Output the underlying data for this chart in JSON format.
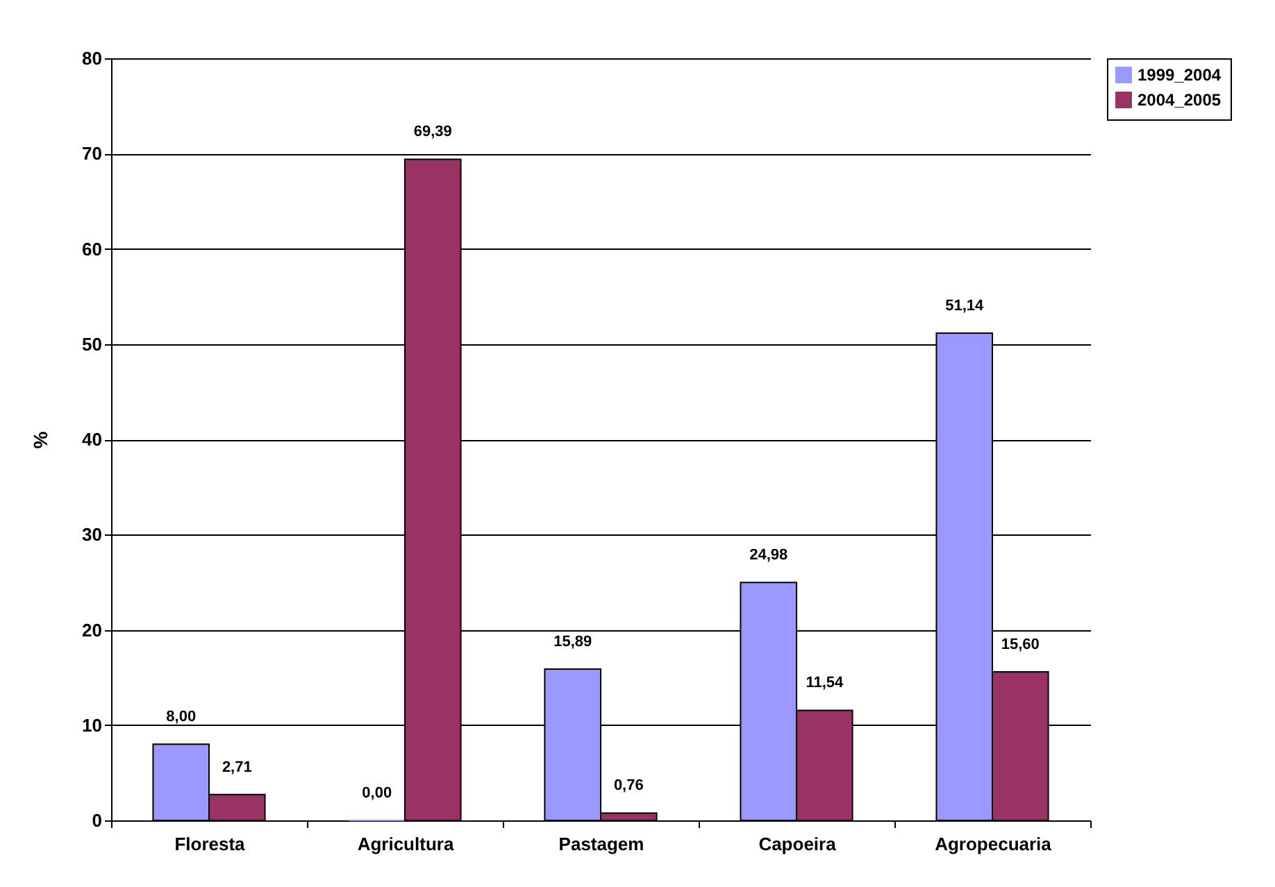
{
  "chart_data": {
    "type": "bar",
    "ylabel": "%",
    "categories": [
      "Floresta",
      "Agricultura",
      "Pastagem",
      "Capoeira",
      "Agropecuaria"
    ],
    "series": [
      {
        "name": "1999_2004",
        "color": "#9999ff",
        "values": [
          8.0,
          0.0,
          15.89,
          24.98,
          51.14
        ],
        "value_labels": [
          "8,00",
          "0,00",
          "15,89",
          "24,98",
          "51,14"
        ]
      },
      {
        "name": "2004_2005",
        "color": "#993366",
        "values": [
          2.71,
          69.39,
          0.76,
          11.54,
          15.6
        ],
        "value_labels": [
          "2,71",
          "69,39",
          "0,76",
          "11,54",
          "15,60"
        ]
      }
    ],
    "ylim": [
      0,
      80
    ],
    "yticks": [
      0,
      10,
      20,
      30,
      40,
      50,
      60,
      70,
      80
    ],
    "grid": "y",
    "legend": "right"
  }
}
